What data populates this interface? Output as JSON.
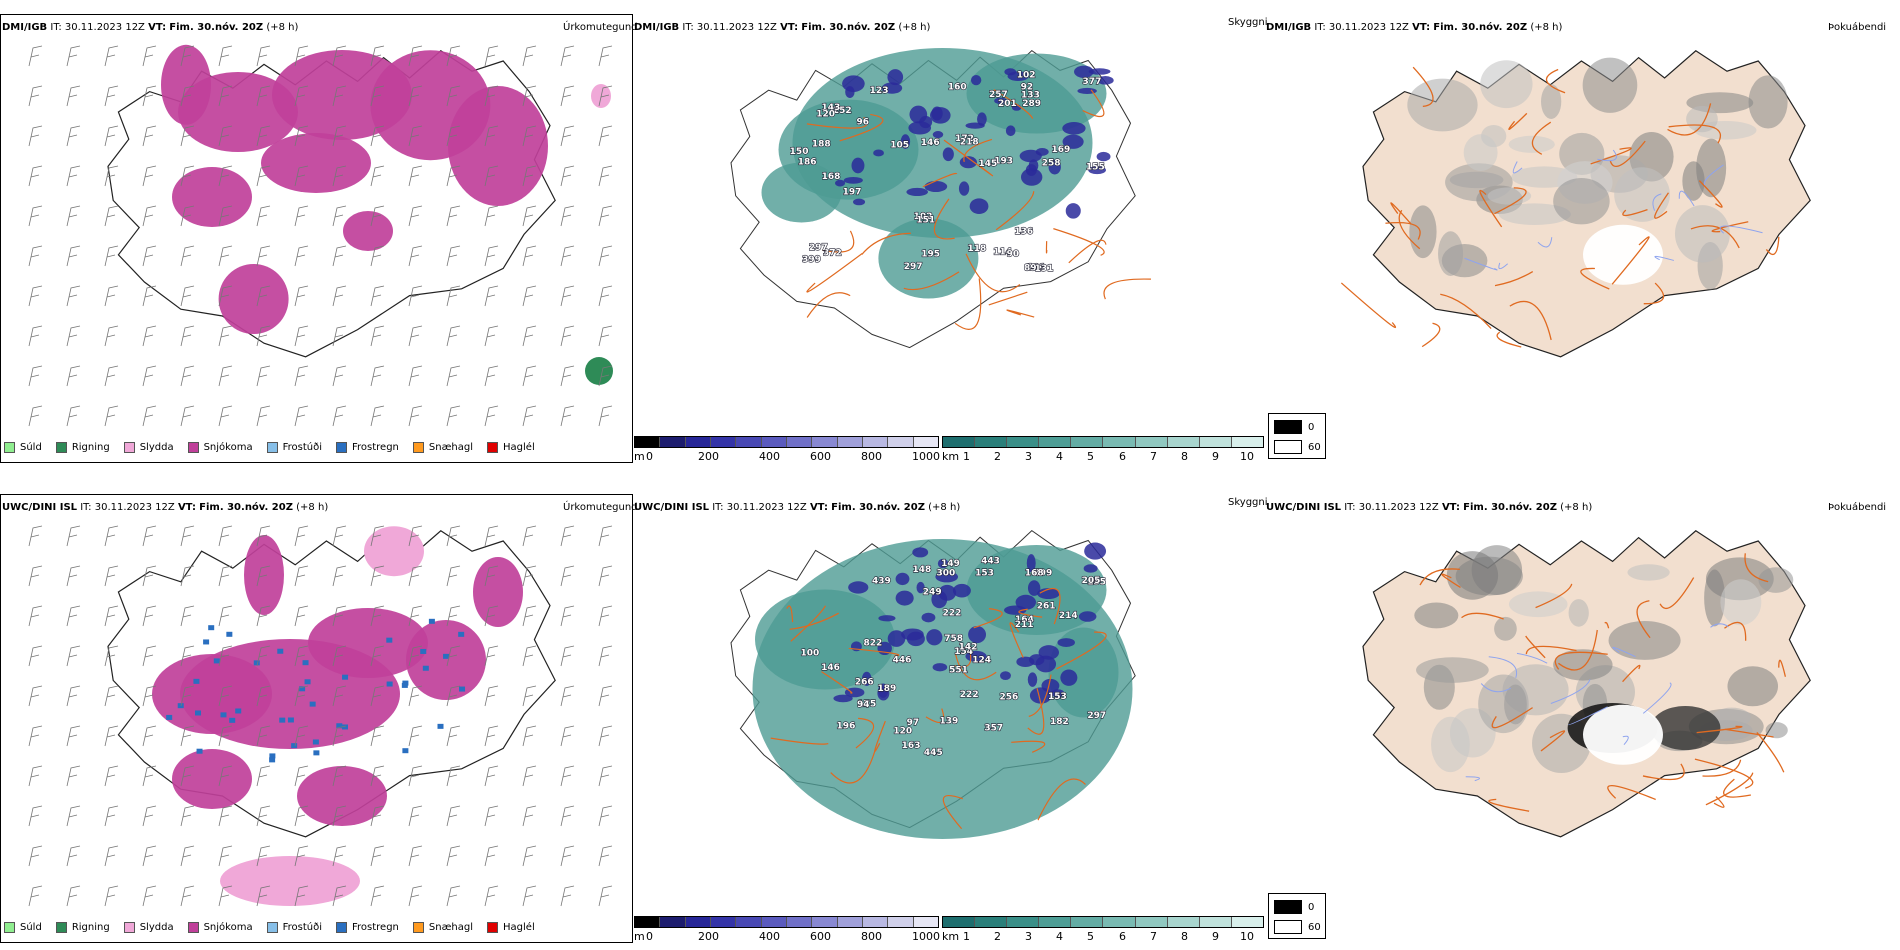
{
  "rows": [
    {
      "id": "dmi",
      "precip": {
        "source": "DMI/IGB",
        "it_label": "IT:",
        "it_value": "30.11.2023 12Z",
        "vt_label": "VT:",
        "vt_value": "Fim. 30.nóv. 20Z",
        "lead": "(+8 h)",
        "product": "Úrkomutegund"
      },
      "vis": {
        "source": "DMI/IGB",
        "it_label": "IT:",
        "it_value": "30.11.2023 12Z",
        "vt_label": "VT:",
        "vt_value": "Fim. 30.nóv. 20Z",
        "lead": "(+8 h)",
        "product": "Skyggni",
        "labels": [
          "105",
          "114",
          "101",
          "90",
          "252",
          "197",
          "102",
          "136",
          "131",
          "89",
          "92",
          "155",
          "143",
          "172",
          "150",
          "372",
          "195",
          "123",
          "168",
          "289",
          "297",
          "146",
          "169",
          "133",
          "102",
          "399",
          "257",
          "297",
          "201",
          "120",
          "193",
          "188",
          "151",
          "145",
          "118",
          "377",
          "218",
          "160",
          "186",
          "258",
          "96"
        ]
      },
      "fog": {
        "source": "DMI/IGB",
        "it_label": "IT:",
        "it_value": "30.11.2023 12Z",
        "vt_label": "VT:",
        "vt_value": "Fim. 30.nóv. 20Z",
        "lead": "(+8 h)",
        "product": "Þokuábendi"
      }
    },
    {
      "id": "uwc",
      "precip": {
        "source": "UWC/DINI ISL",
        "it_label": "IT:",
        "it_value": "30.11.2023 12Z",
        "vt_label": "VT:",
        "vt_value": "Fim. 30.nóv. 20Z",
        "lead": "(+8 h)",
        "product": "Úrkomutegund"
      },
      "vis": {
        "source": "UWC/DINI ISL",
        "it_label": "IT:",
        "it_value": "30.11.2023 12Z",
        "vt_label": "VT:",
        "vt_value": "Fim. 30.nóv. 20Z",
        "lead": "(+8 h)",
        "product": "Skyggni",
        "labels": [
          "499",
          "120",
          "153",
          "124",
          "164",
          "189",
          "222",
          "446",
          "155",
          "153",
          "139",
          "297",
          "205",
          "551",
          "443",
          "196",
          "168",
          "439",
          "261",
          "222",
          "822",
          "266",
          "175",
          "214",
          "211",
          "146",
          "149",
          "256",
          "154",
          "445",
          "148",
          "182",
          "100",
          "94",
          "163",
          "357",
          "300",
          "249",
          "142",
          "758",
          "97"
        ]
      },
      "fog": {
        "source": "UWC/DINI ISL",
        "it_label": "IT:",
        "it_value": "30.11.2023 12Z",
        "vt_label": "VT:",
        "vt_value": "Fim. 30.nóv. 20Z",
        "lead": "(+8 h)",
        "product": "Þokuábendi"
      }
    }
  ],
  "precip_legend": [
    {
      "label": "Súld",
      "color": "#90ee90"
    },
    {
      "label": "Rigning",
      "color": "#2e8b57"
    },
    {
      "label": "Slydda",
      "color": "#f0a8d8"
    },
    {
      "label": "Snjókoma",
      "color": "#c0409a"
    },
    {
      "label": "Frostúði",
      "color": "#87bfe8"
    },
    {
      "label": "Frostregn",
      "color": "#2a6fc0"
    },
    {
      "label": "Snæhagl",
      "color": "#ff9a1f"
    },
    {
      "label": "Haglél",
      "color": "#e00000"
    }
  ],
  "vis_scale_m": {
    "unit": "m",
    "ticks": [
      "0",
      "200",
      "400",
      "600",
      "800",
      "1000"
    ],
    "colors": [
      "#000000",
      "#1c1c6e",
      "#262698",
      "#3434a8",
      "#4848b4",
      "#5a5abe",
      "#7070c8",
      "#8888d2",
      "#a0a0da",
      "#b8b8e2",
      "#d0d0ea",
      "#e6e6f4"
    ]
  },
  "vis_scale_km": {
    "unit": "km",
    "ticks": [
      "1",
      "2",
      "3",
      "4",
      "5",
      "6",
      "7",
      "8",
      "9",
      "10"
    ],
    "colors": [
      "#1e6e6e",
      "#2a7f7a",
      "#3a8f88",
      "#4e9e96",
      "#63aca4",
      "#79bab2",
      "#90c8c0",
      "#a8d5ce",
      "#c0e2dc",
      "#d8efeb"
    ]
  },
  "fog_legend": [
    {
      "label": "0",
      "color": "#000000"
    },
    {
      "label": "60",
      "color": "#ffffff"
    }
  ],
  "colors": {
    "outline": "#222222",
    "roads": "#e06a20",
    "rivers": "#8fa4ee",
    "land_fog": "#f2dfcf",
    "vis_fill": "#4d9b93"
  }
}
